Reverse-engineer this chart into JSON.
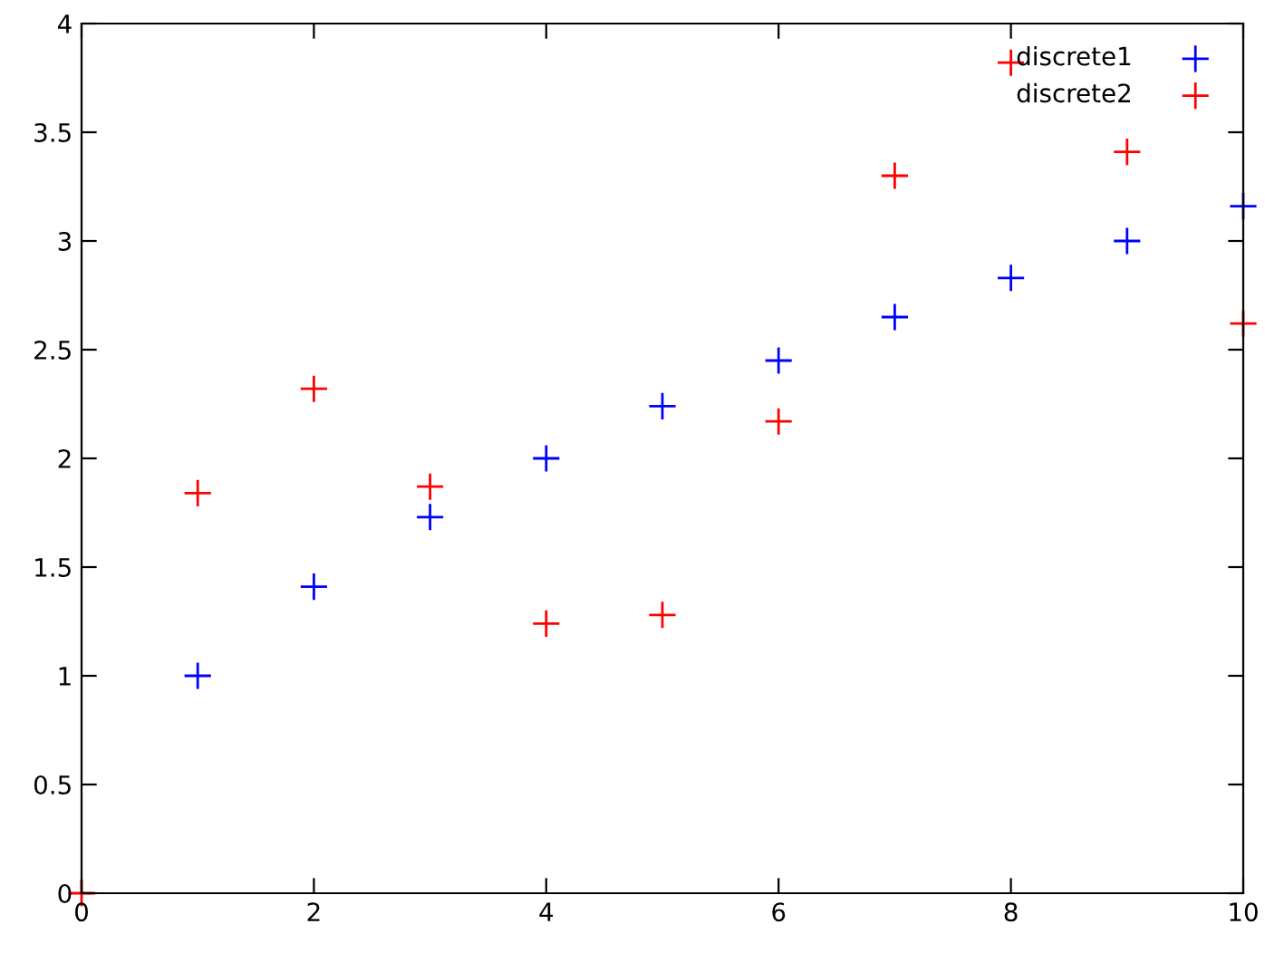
{
  "chart_data": {
    "type": "scatter",
    "x": [
      0,
      1,
      2,
      3,
      4,
      5,
      6,
      7,
      8,
      9,
      10
    ],
    "series": [
      {
        "name": "discrete1",
        "color": "#0000ff",
        "values": [
          null,
          1.0,
          1.41,
          1.73,
          2.0,
          2.24,
          2.45,
          2.65,
          2.83,
          3.0,
          3.16
        ]
      },
      {
        "name": "discrete2",
        "color": "#ff0000",
        "values": [
          0,
          1.84,
          2.32,
          1.87,
          1.24,
          1.28,
          2.17,
          3.3,
          3.82,
          3.41,
          2.62
        ]
      }
    ],
    "xlim": [
      0,
      10
    ],
    "xticks": [
      0,
      2,
      4,
      6,
      8,
      10
    ],
    "ylim": [
      0,
      4
    ],
    "yticks": [
      0,
      0.5,
      1,
      1.5,
      2,
      2.5,
      3,
      3.5,
      4
    ],
    "marker": "cross",
    "legend": "top right",
    "grid": false
  }
}
